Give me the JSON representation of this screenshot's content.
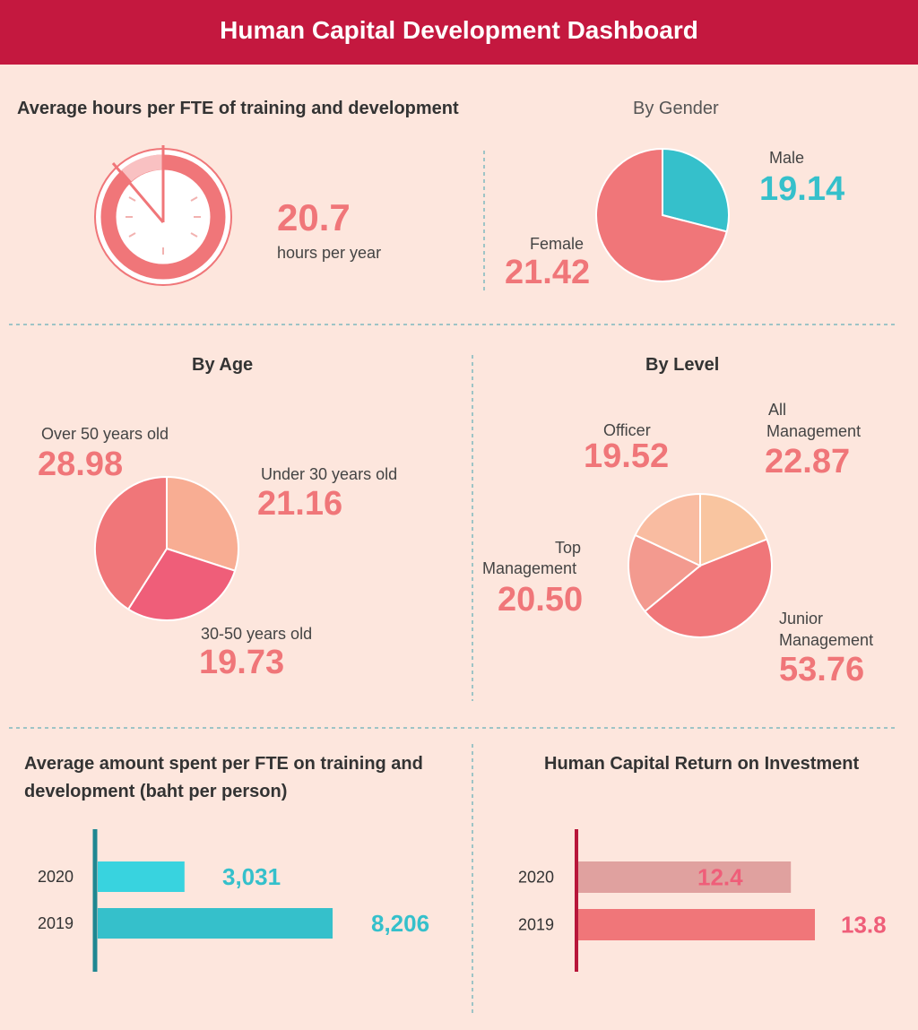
{
  "header": {
    "title": "Human Capital Development Dashboard"
  },
  "colors": {
    "brand": "#c4183f",
    "background": "#fde6dd",
    "coral": "#f07679",
    "teal": "#35c0cb",
    "bright_teal": "#38d3df",
    "dark_teal": "#1e8791",
    "peach": "#f8ad93",
    "pink_red": "#ef5e79",
    "light_peach": "#f9bca1",
    "muted_pink": "#e0a19f",
    "crimson": "#b8163a"
  },
  "training_hours": {
    "title": "Average hours per FTE of training and development",
    "value": "20.7",
    "unit": "hours per year",
    "icon": "clock-icon"
  },
  "by_gender": {
    "title": "By Gender",
    "male_label": "Male",
    "male_value": "19.14",
    "female_label": "Female",
    "female_value": "21.42"
  },
  "by_age": {
    "title": "By Age",
    "over50_label": "Over 50 years old",
    "over50_value": "28.98",
    "under30_label": "Under 30 years old",
    "under30_value": "21.16",
    "mid_label": "30-50 years old",
    "mid_value": "19.73"
  },
  "by_level": {
    "title": "By Level",
    "officer_label": "Officer",
    "officer_value": "19.52",
    "allmgmt_label_1": "All",
    "allmgmt_label_2": "Management",
    "allmgmt_value": "22.87",
    "top_label_1": "Top",
    "top_label_2": "Management",
    "top_value": "20.50",
    "junior_label_1": "Junior",
    "junior_label_2": "Management",
    "junior_value": "53.76"
  },
  "spend": {
    "title_line1": "Average amount spent per FTE on training and",
    "title_line2": "development (baht per person)"
  },
  "roi": {
    "title": "Human Capital Return on Investment"
  },
  "chart_data": [
    {
      "type": "pie",
      "title": "By Gender",
      "categories": [
        "Male",
        "Female"
      ],
      "values": [
        19.14,
        21.42
      ],
      "slice_share": [
        0.29,
        0.71
      ],
      "colors": [
        "#35c0cb",
        "#f07679"
      ]
    },
    {
      "type": "pie",
      "title": "By Age",
      "categories": [
        "Under 30 years old",
        "30-50 years old",
        "Over 50 years old"
      ],
      "values": [
        21.16,
        19.73,
        28.98
      ],
      "slice_share": [
        0.3,
        0.29,
        0.41
      ],
      "colors": [
        "#f8ad93",
        "#ef5e79",
        "#f07679"
      ]
    },
    {
      "type": "pie",
      "title": "By Level",
      "categories": [
        "All Management",
        "Junior Management",
        "Top Management",
        "Officer"
      ],
      "values": [
        22.87,
        53.76,
        20.5,
        19.52
      ],
      "slice_share": [
        0.19,
        0.45,
        0.18,
        0.18
      ],
      "colors": [
        "#f9c5a0",
        "#f07679",
        "#f39a8f",
        "#f9bca1"
      ]
    },
    {
      "type": "bar",
      "orientation": "horizontal",
      "title": "Average amount spent per FTE on training and development (baht per person)",
      "categories": [
        "2020",
        "2019"
      ],
      "values": [
        3031,
        8206
      ],
      "value_labels": [
        "3,031",
        "8,206"
      ],
      "colors": [
        "#38d3df",
        "#35c0cb"
      ],
      "xlim": [
        0,
        8206
      ]
    },
    {
      "type": "bar",
      "orientation": "horizontal",
      "title": "Human Capital Return on Investment",
      "categories": [
        "2020",
        "2019"
      ],
      "values": [
        12.4,
        13.8
      ],
      "value_labels": [
        "12.4",
        "13.8"
      ],
      "colors": [
        "#e0a19f",
        "#f07679"
      ],
      "xlim": [
        0,
        13.8
      ]
    }
  ]
}
